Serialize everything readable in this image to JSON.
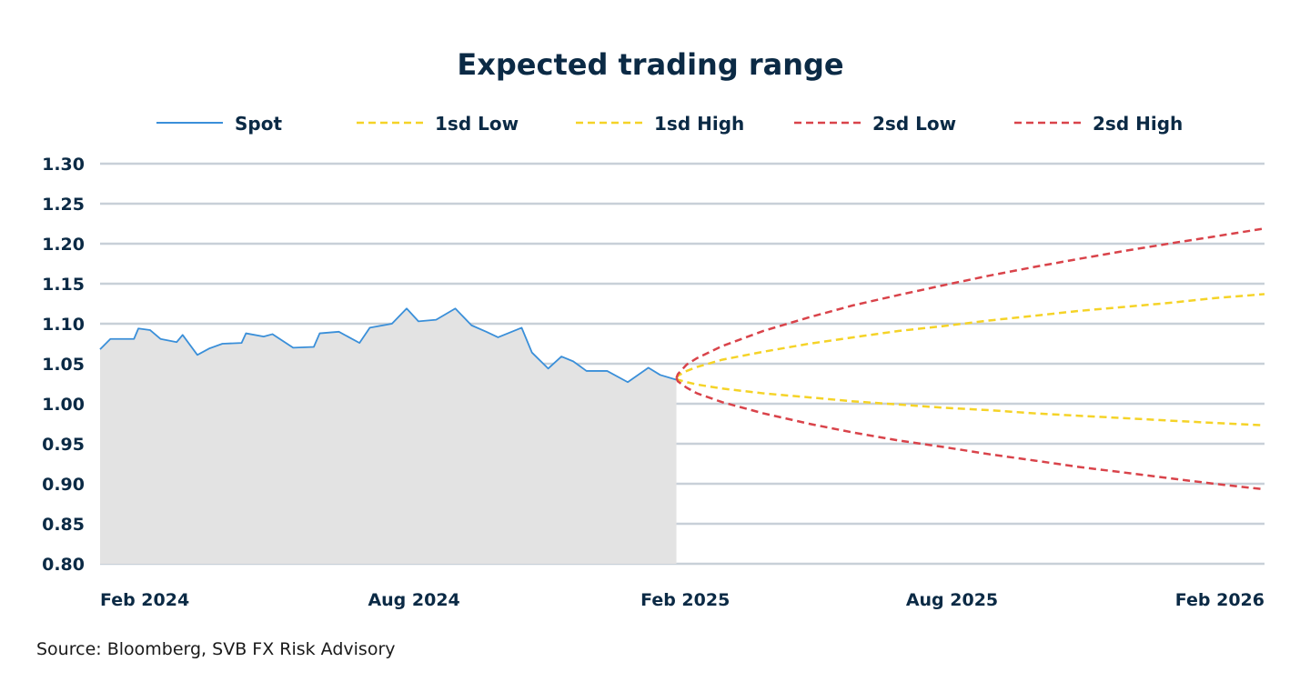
{
  "chart_data": {
    "type": "line",
    "title": "Expected trading range",
    "source": "Source: Bloomberg, SVB FX Risk Advisory",
    "xlim": [
      "2024-01-01",
      "2026-03-01"
    ],
    "ylim": [
      0.8,
      1.3
    ],
    "yticks": [
      "1.30",
      "1.25",
      "1.20",
      "1.15",
      "1.10",
      "1.05",
      "1.00",
      "0.95",
      "0.90",
      "0.85",
      "0.80"
    ],
    "xticks": [
      {
        "label": "Feb 2024",
        "date": "2024-02-01"
      },
      {
        "label": "Aug 2024",
        "date": "2024-08-01"
      },
      {
        "label": "Feb 2025",
        "date": "2025-02-01"
      },
      {
        "label": "Aug 2025",
        "date": "2025-08-01"
      },
      {
        "label": "Feb 2026",
        "date": "2026-02-01"
      }
    ],
    "grid": true,
    "legend_placement": "top",
    "colors": {
      "spot": "#3a8fd9",
      "spot_fill": "#e3e3e3",
      "sd1": "#f5d327",
      "sd2": "#d9434a",
      "grid": "#c8d0d8",
      "text": "#0b2a45"
    },
    "series": [
      {
        "name": "Spot",
        "style": "solid",
        "color": "#3a8fd9",
        "area": true,
        "points": [
          [
            "2024-01-01",
            1.068
          ],
          [
            "2024-01-08",
            1.081
          ],
          [
            "2024-01-24",
            1.081
          ],
          [
            "2024-01-27",
            1.094
          ],
          [
            "2024-02-04",
            1.092
          ],
          [
            "2024-02-11",
            1.081
          ],
          [
            "2024-02-22",
            1.077
          ],
          [
            "2024-02-26",
            1.086
          ],
          [
            "2024-03-07",
            1.061
          ],
          [
            "2024-03-15",
            1.069
          ],
          [
            "2024-03-24",
            1.075
          ],
          [
            "2024-04-06",
            1.076
          ],
          [
            "2024-04-09",
            1.088
          ],
          [
            "2024-04-21",
            1.084
          ],
          [
            "2024-04-27",
            1.087
          ],
          [
            "2024-05-11",
            1.07
          ],
          [
            "2024-05-25",
            1.071
          ],
          [
            "2024-05-29",
            1.088
          ],
          [
            "2024-06-11",
            1.09
          ],
          [
            "2024-06-25",
            1.076
          ],
          [
            "2024-07-02",
            1.095
          ],
          [
            "2024-07-17",
            1.1
          ],
          [
            "2024-07-27",
            1.119
          ],
          [
            "2024-08-04",
            1.103
          ],
          [
            "2024-08-16",
            1.105
          ],
          [
            "2024-08-29",
            1.119
          ],
          [
            "2024-09-09",
            1.098
          ],
          [
            "2024-09-19",
            1.09
          ],
          [
            "2024-09-27",
            1.083
          ],
          [
            "2024-10-13",
            1.095
          ],
          [
            "2024-10-20",
            1.064
          ],
          [
            "2024-10-31",
            1.044
          ],
          [
            "2024-11-09",
            1.059
          ],
          [
            "2024-11-17",
            1.053
          ],
          [
            "2024-11-26",
            1.041
          ],
          [
            "2024-12-10",
            1.041
          ],
          [
            "2024-12-24",
            1.027
          ],
          [
            "2025-01-07",
            1.045
          ],
          [
            "2025-01-15",
            1.036
          ],
          [
            "2025-01-26",
            1.03
          ]
        ]
      },
      {
        "name": "1sd Low",
        "style": "dashed",
        "color": "#f5d327",
        "points": [
          [
            "2025-01-26",
            1.032
          ],
          [
            "2025-01-27",
            1.03
          ],
          [
            "2025-02-02",
            1.027
          ],
          [
            "2025-02-09",
            1.024
          ],
          [
            "2025-02-26",
            1.019
          ],
          [
            "2025-03-26",
            1.013
          ],
          [
            "2025-04-26",
            1.008
          ],
          [
            "2025-05-26",
            1.003
          ],
          [
            "2025-06-26",
            0.999
          ],
          [
            "2025-07-26",
            0.995
          ],
          [
            "2025-08-26",
            0.992
          ],
          [
            "2025-09-26",
            0.988
          ],
          [
            "2025-10-26",
            0.985
          ],
          [
            "2025-11-26",
            0.982
          ],
          [
            "2025-12-26",
            0.979
          ],
          [
            "2026-01-26",
            0.976
          ],
          [
            "2026-03-01",
            0.973
          ]
        ]
      },
      {
        "name": "1sd High",
        "style": "dashed",
        "color": "#f5d327",
        "points": [
          [
            "2025-01-26",
            1.032
          ],
          [
            "2025-01-27",
            1.035
          ],
          [
            "2025-02-02",
            1.041
          ],
          [
            "2025-02-09",
            1.046
          ],
          [
            "2025-02-26",
            1.055
          ],
          [
            "2025-03-26",
            1.065
          ],
          [
            "2025-04-26",
            1.075
          ],
          [
            "2025-05-26",
            1.083
          ],
          [
            "2025-06-26",
            1.091
          ],
          [
            "2025-07-26",
            1.097
          ],
          [
            "2025-08-26",
            1.104
          ],
          [
            "2025-09-26",
            1.11
          ],
          [
            "2025-10-26",
            1.116
          ],
          [
            "2025-11-26",
            1.121
          ],
          [
            "2025-12-26",
            1.126
          ],
          [
            "2026-01-26",
            1.132
          ],
          [
            "2026-03-01",
            1.137
          ]
        ]
      },
      {
        "name": "2sd Low",
        "style": "dashed",
        "color": "#d9434a",
        "points": [
          [
            "2025-01-26",
            1.032
          ],
          [
            "2025-01-27",
            1.028
          ],
          [
            "2025-02-02",
            1.02
          ],
          [
            "2025-02-09",
            1.013
          ],
          [
            "2025-02-26",
            1.002
          ],
          [
            "2025-03-26",
            0.988
          ],
          [
            "2025-04-26",
            0.975
          ],
          [
            "2025-05-26",
            0.964
          ],
          [
            "2025-06-26",
            0.954
          ],
          [
            "2025-07-26",
            0.946
          ],
          [
            "2025-08-26",
            0.937
          ],
          [
            "2025-09-26",
            0.929
          ],
          [
            "2025-10-26",
            0.921
          ],
          [
            "2025-11-26",
            0.914
          ],
          [
            "2025-12-26",
            0.907
          ],
          [
            "2026-01-26",
            0.9
          ],
          [
            "2026-03-01",
            0.893
          ]
        ]
      },
      {
        "name": "2sd High",
        "style": "dashed",
        "color": "#d9434a",
        "points": [
          [
            "2025-01-26",
            1.032
          ],
          [
            "2025-01-27",
            1.037
          ],
          [
            "2025-02-02",
            1.049
          ],
          [
            "2025-02-09",
            1.057
          ],
          [
            "2025-02-26",
            1.072
          ],
          [
            "2025-03-26",
            1.091
          ],
          [
            "2025-04-26",
            1.108
          ],
          [
            "2025-05-26",
            1.123
          ],
          [
            "2025-06-26",
            1.136
          ],
          [
            "2025-07-26",
            1.148
          ],
          [
            "2025-08-26",
            1.16
          ],
          [
            "2025-09-26",
            1.171
          ],
          [
            "2025-10-26",
            1.181
          ],
          [
            "2025-11-26",
            1.191
          ],
          [
            "2025-12-26",
            1.2
          ],
          [
            "2026-01-26",
            1.209
          ],
          [
            "2026-03-01",
            1.219
          ]
        ]
      }
    ]
  }
}
